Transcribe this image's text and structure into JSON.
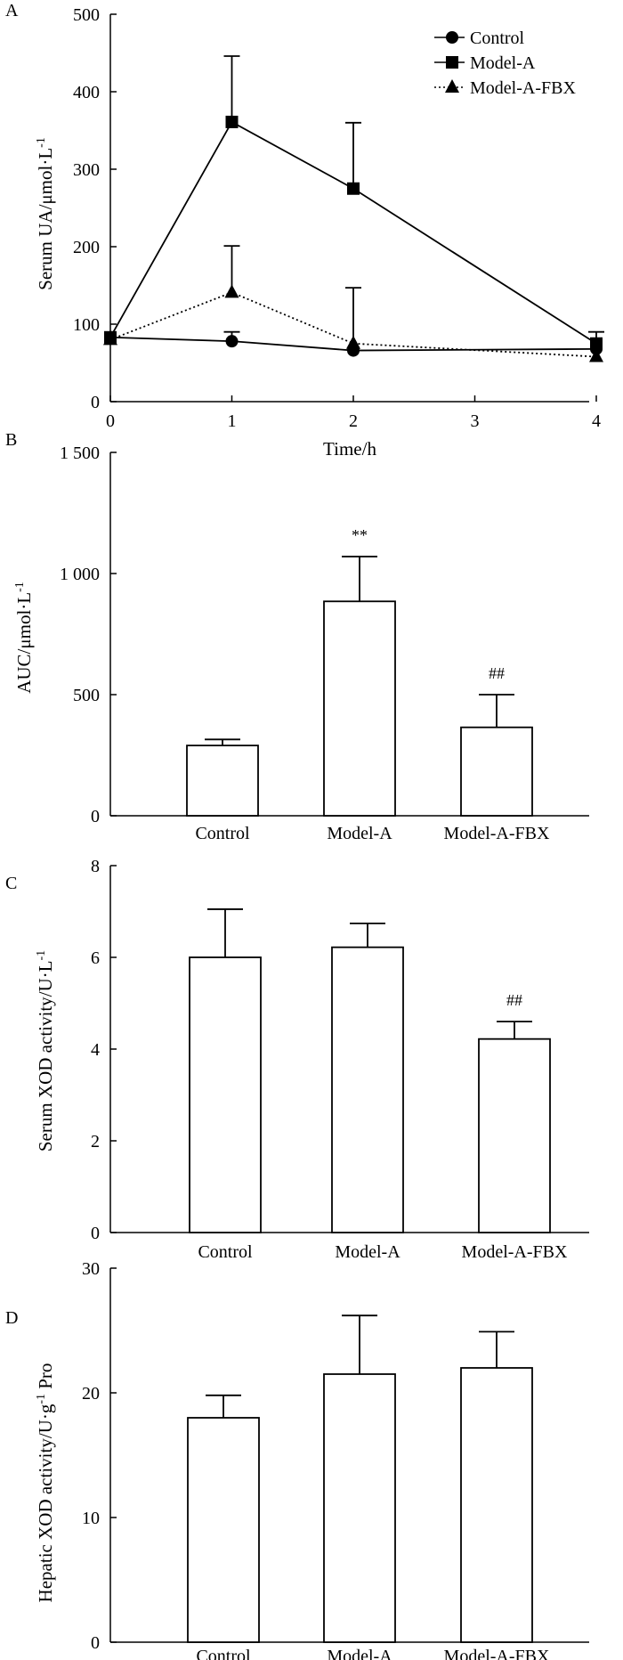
{
  "chart_data": [
    {
      "panel": "A",
      "type": "line",
      "xlabel": "Time/h",
      "ylabel": "Serum UA/μmol·L",
      "ylabel_sup": "-1",
      "x": [
        0,
        1,
        2,
        4
      ],
      "xticks": [
        "0",
        "1",
        "2",
        "3",
        "4"
      ],
      "yticks": [
        "0",
        "100",
        "200",
        "300",
        "400",
        "500"
      ],
      "xlim": [
        0,
        4
      ],
      "ylim": [
        0,
        500
      ],
      "legend": "top-right",
      "series": [
        {
          "name": "Control",
          "marker": "circle",
          "line": "solid",
          "values": [
            83,
            78,
            66,
            68
          ],
          "errors": [
            0,
            12,
            0,
            0
          ]
        },
        {
          "name": "Model-A",
          "marker": "square",
          "line": "solid",
          "values": [
            83,
            361,
            275,
            75
          ],
          "errors": [
            0,
            85,
            85,
            15
          ]
        },
        {
          "name": "Model-A-FBX",
          "marker": "triangle",
          "line": "dotted",
          "values": [
            80,
            141,
            75,
            58
          ],
          "errors": [
            0,
            60,
            72,
            0
          ]
        }
      ]
    },
    {
      "panel": "B",
      "type": "bar",
      "xlabel": "",
      "ylabel": "AUC/μmol·L",
      "ylabel_sup": "-1",
      "categories": [
        "Control",
        "Model-A",
        "Model-A-FBX"
      ],
      "values": [
        290,
        885,
        365
      ],
      "errors": [
        25,
        185,
        135
      ],
      "annotations": [
        "",
        "**",
        "##"
      ],
      "yticks": [
        "0",
        "500",
        "1 000",
        "1 500"
      ],
      "ylim": [
        0,
        1500
      ]
    },
    {
      "panel": "C",
      "type": "bar",
      "xlabel": "",
      "ylabel": "Serum XOD activity/U·L",
      "ylabel_sup": "-1",
      "categories": [
        "Control",
        "Model-A",
        "Model-A-FBX"
      ],
      "values": [
        6.0,
        6.22,
        4.22
      ],
      "errors": [
        1.05,
        0.52,
        0.38
      ],
      "annotations": [
        "",
        "",
        "##"
      ],
      "yticks": [
        "0",
        "2",
        "4",
        "6",
        "8"
      ],
      "ylim": [
        0,
        8
      ]
    },
    {
      "panel": "D",
      "type": "bar",
      "xlabel": "",
      "ylabel": "Hepatic XOD activity/U·g",
      "ylabel_sup": "-1",
      "ylabel_tail": " Pro",
      "categories": [
        "Control",
        "Model-A",
        "Model-A-FBX"
      ],
      "values": [
        18.0,
        21.5,
        22.0
      ],
      "errors": [
        1.8,
        4.7,
        2.9
      ],
      "annotations": [
        "",
        "",
        ""
      ],
      "yticks": [
        "0",
        "10",
        "20",
        "30"
      ],
      "ylim": [
        0,
        30
      ]
    }
  ]
}
